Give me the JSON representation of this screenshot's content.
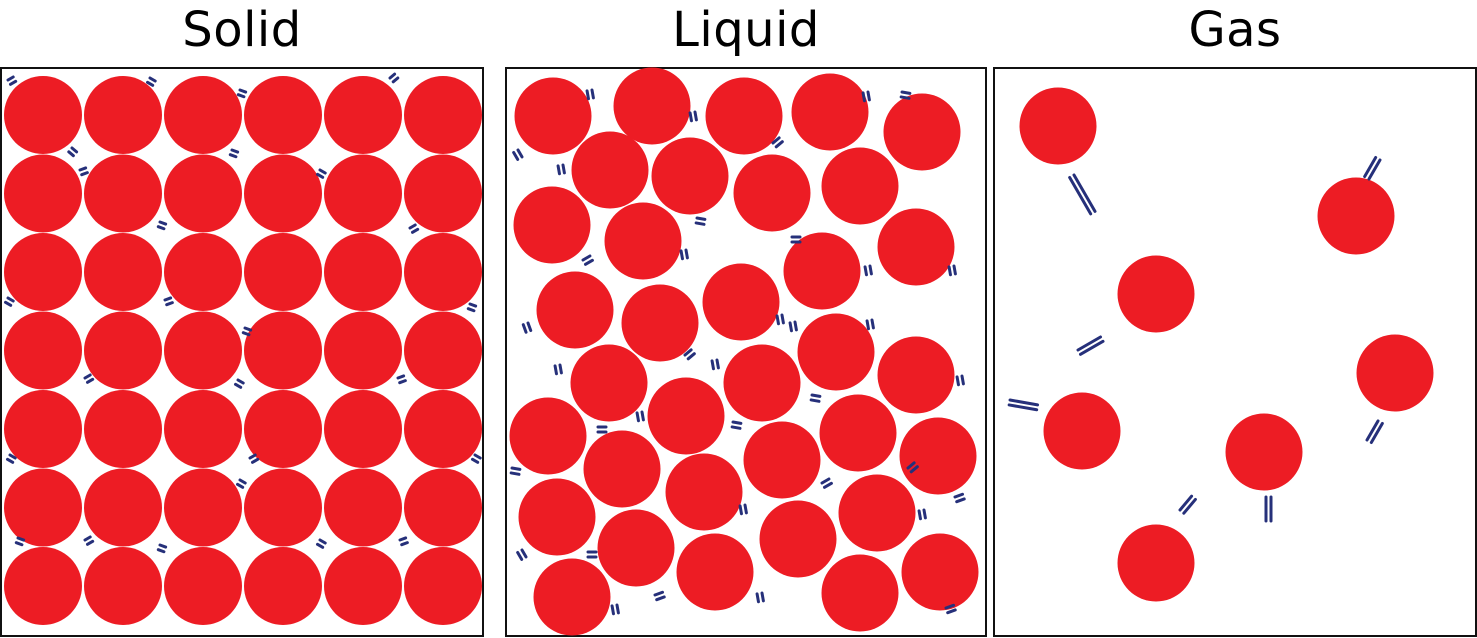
{
  "panels": [
    {
      "id": "solid",
      "title": "Solid"
    },
    {
      "id": "liquid",
      "title": "Liquid"
    },
    {
      "id": "gas",
      "title": "Gas"
    }
  ],
  "colors": {
    "particle": "#ed1c24",
    "motion_mark": "#26307a",
    "frame": "#111111"
  }
}
